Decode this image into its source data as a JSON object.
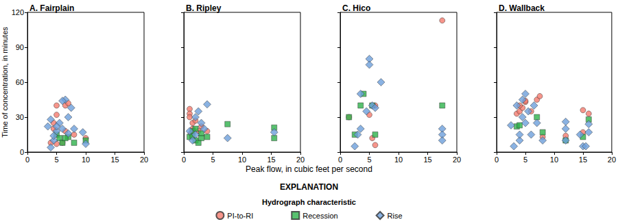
{
  "chart_data": {
    "type": "scatter",
    "xlabel": "Peak flow, in cubic feet per second",
    "ylabel": "Time of concentration, in minutes",
    "legend_title": "EXPLANATION",
    "legend_subtitle": "Hydrograph characteristic",
    "legend": "bottom",
    "grid": false,
    "xlim": [
      0,
      20
    ],
    "xticks": [
      0,
      5,
      10,
      15,
      20
    ],
    "ylim": [
      0,
      120
    ],
    "yticks": [
      0,
      30,
      60,
      90,
      120
    ],
    "panels": [
      {
        "title": "A. Fairplain",
        "series": [
          {
            "name": "PI-to-RI",
            "color": "#f47a6e",
            "marker": "circle",
            "x": [
              5,
              5,
              4.5,
              6.5,
              6.5,
              8,
              10,
              4,
              5,
              6,
              4.5,
              7
            ],
            "values": [
              40,
              32,
              25,
              40,
              18,
              15,
              12,
              8,
              7,
              8,
              20,
              42
            ]
          },
          {
            "name": "Recession",
            "color": "#2eb24b",
            "marker": "square",
            "x": [
              5,
              5.5,
              6,
              7,
              8,
              10,
              6.5
            ],
            "values": [
              15,
              12,
              8,
              13,
              8,
              10,
              12
            ]
          },
          {
            "name": "Rise",
            "color": "#6d9fdb",
            "marker": "diamond",
            "x": [
              3.5,
              4,
              4,
              4.5,
              5,
              5.5,
              6.5,
              6,
              7.5,
              7,
              8,
              9.5,
              10,
              4.5,
              5,
              6,
              7
            ],
            "values": [
              22,
              28,
              4,
              10,
              18,
              25,
              45,
              44,
              38,
              30,
              20,
              17,
              7,
              14,
              22,
              20,
              16
            ]
          }
        ]
      },
      {
        "title": "B. Ripley",
        "series": [
          {
            "name": "PI-to-RI",
            "color": "#f47a6e",
            "marker": "circle",
            "x": [
              1,
              1,
              1,
              1.5,
              2,
              1.5,
              2.5,
              3,
              4,
              1.2
            ],
            "values": [
              37,
              33,
              30,
              25,
              27,
              20,
              18,
              22,
              18,
              16
            ]
          },
          {
            "name": "Recession",
            "color": "#2eb24b",
            "marker": "square",
            "x": [
              1,
              1.5,
              1.5,
              2,
              2.5,
              2,
              3,
              3,
              7.5,
              15.5,
              15.5,
              4
            ],
            "values": [
              13,
              14,
              18,
              10,
              8,
              20,
              16,
              12,
              24,
              21,
              12,
              13
            ]
          },
          {
            "name": "Rise",
            "color": "#6d9fdb",
            "marker": "diamond",
            "x": [
              1,
              1.5,
              2,
              2.5,
              3,
              3.5,
              4,
              7.5,
              15.5,
              2
            ],
            "values": [
              18,
              10,
              30,
              35,
              25,
              20,
              41,
              12,
              17,
              15
            ]
          }
        ]
      },
      {
        "title": "C. Hico",
        "series": [
          {
            "name": "PI-to-RI",
            "color": "#f47a6e",
            "marker": "circle",
            "x": [
              1.5,
              5,
              5.5,
              6,
              17.5,
              6
            ],
            "values": [
              30,
              32,
              12,
              6,
              113,
              40
            ]
          },
          {
            "name": "Recession",
            "color": "#2eb24b",
            "marker": "square",
            "x": [
              1.5,
              2.5,
              3.5,
              4,
              5.5,
              6,
              17.5
            ],
            "values": [
              30,
              15,
              40,
              50,
              40,
              15,
              40
            ]
          },
          {
            "name": "Rise",
            "color": "#6d9fdb",
            "marker": "diamond",
            "x": [
              2.5,
              3,
              3.5,
              3.5,
              5,
              5,
              5.5,
              6,
              7,
              17.5,
              17.5,
              17.5,
              4.5
            ],
            "values": [
              5,
              15,
              50,
              20,
              80,
              75,
              40,
              38,
              60,
              20,
              15,
              10,
              35
            ]
          }
        ]
      },
      {
        "title": "D. Wallback",
        "series": [
          {
            "name": "PI-to-RI",
            "color": "#f47a6e",
            "marker": "circle",
            "x": [
              3.5,
              4,
              4.5,
              5,
              5,
              6,
              7,
              7.5,
              8,
              12,
              15,
              15,
              16,
              4
            ],
            "values": [
              33,
              35,
              38,
              43,
              44,
              35,
              45,
              48,
              13,
              14,
              36,
              17,
              33,
              40
            ]
          },
          {
            "name": "Recession",
            "color": "#2eb24b",
            "marker": "square",
            "x": [
              3.5,
              7,
              8,
              12,
              15,
              16,
              4
            ],
            "values": [
              22,
              30,
              17,
              10,
              13,
              28,
              23
            ]
          },
          {
            "name": "Rise",
            "color": "#6d9fdb",
            "marker": "diamond",
            "x": [
              2.5,
              3,
              3.5,
              4,
              4,
              4.5,
              5,
              5,
              6,
              6.5,
              7,
              8,
              12,
              12,
              12,
              14.5,
              15,
              15.5,
              16,
              16,
              4.5,
              5.5
            ],
            "values": [
              23,
              5,
              40,
              10,
              15,
              45,
              50,
              25,
              15,
              40,
              25,
              10,
              26,
              20,
              10,
              15,
              5,
              5,
              24,
              17,
              30,
              35
            ]
          }
        ]
      }
    ]
  }
}
